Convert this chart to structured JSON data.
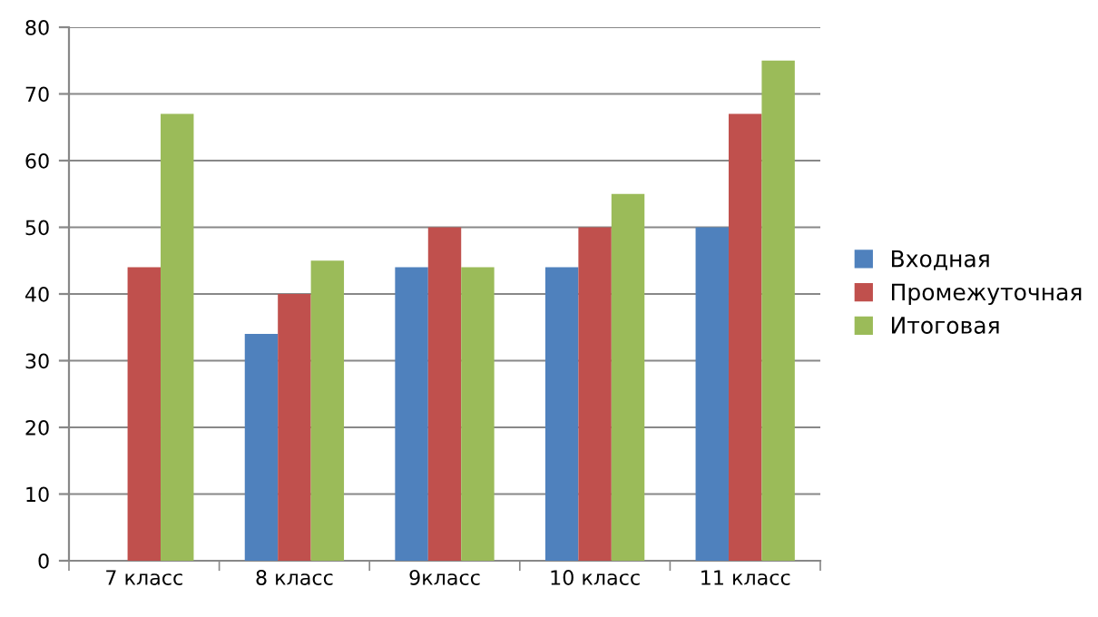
{
  "chart_data": {
    "type": "bar",
    "categories": [
      "7 класс",
      "8 класс",
      "9класс",
      "10 класс",
      "11 класс"
    ],
    "series": [
      {
        "name": "Входная",
        "color": "#4f81bd",
        "values": [
          0,
          34,
          44,
          44,
          50
        ]
      },
      {
        "name": "Промежуточная",
        "color": "#c0504d",
        "values": [
          44,
          40,
          50,
          50,
          67
        ]
      },
      {
        "name": "Итоговая",
        "color": "#9bbb59",
        "values": [
          67,
          45,
          44,
          55,
          75
        ]
      }
    ],
    "ylim": [
      0,
      80
    ],
    "yticks": [
      0,
      10,
      20,
      30,
      40,
      50,
      60,
      70,
      80
    ],
    "grid": "y",
    "legend": "right"
  }
}
